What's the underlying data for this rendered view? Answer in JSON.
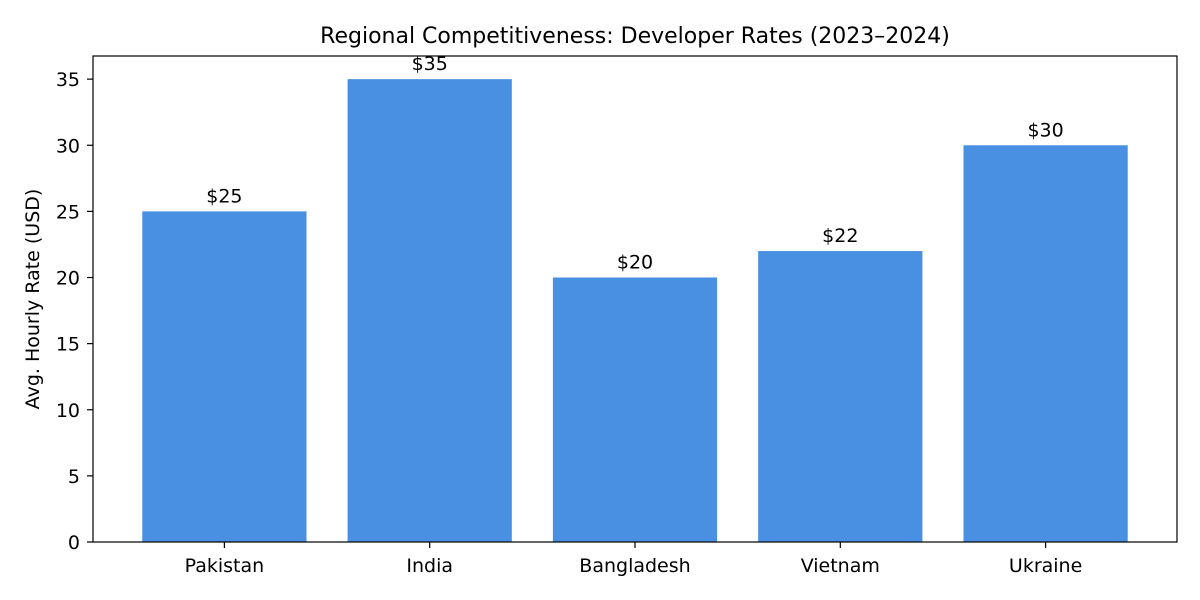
{
  "chart_data": {
    "type": "bar",
    "title": "Regional Competitiveness: Developer Rates (2023–2024)",
    "xlabel": "",
    "ylabel": "Avg. Hourly Rate (USD)",
    "categories": [
      "Pakistan",
      "India",
      "Bangladesh",
      "Vietnam",
      "Ukraine"
    ],
    "values": [
      25,
      35,
      20,
      22,
      30
    ],
    "data_labels": [
      "$25",
      "$35",
      "$20",
      "$22",
      "$30"
    ],
    "yticks": [
      0,
      5,
      10,
      15,
      20,
      25,
      30,
      35
    ],
    "ylim": [
      0,
      36.75
    ],
    "bar_color": "#4a90e2",
    "grid": false,
    "legend": "none"
  }
}
